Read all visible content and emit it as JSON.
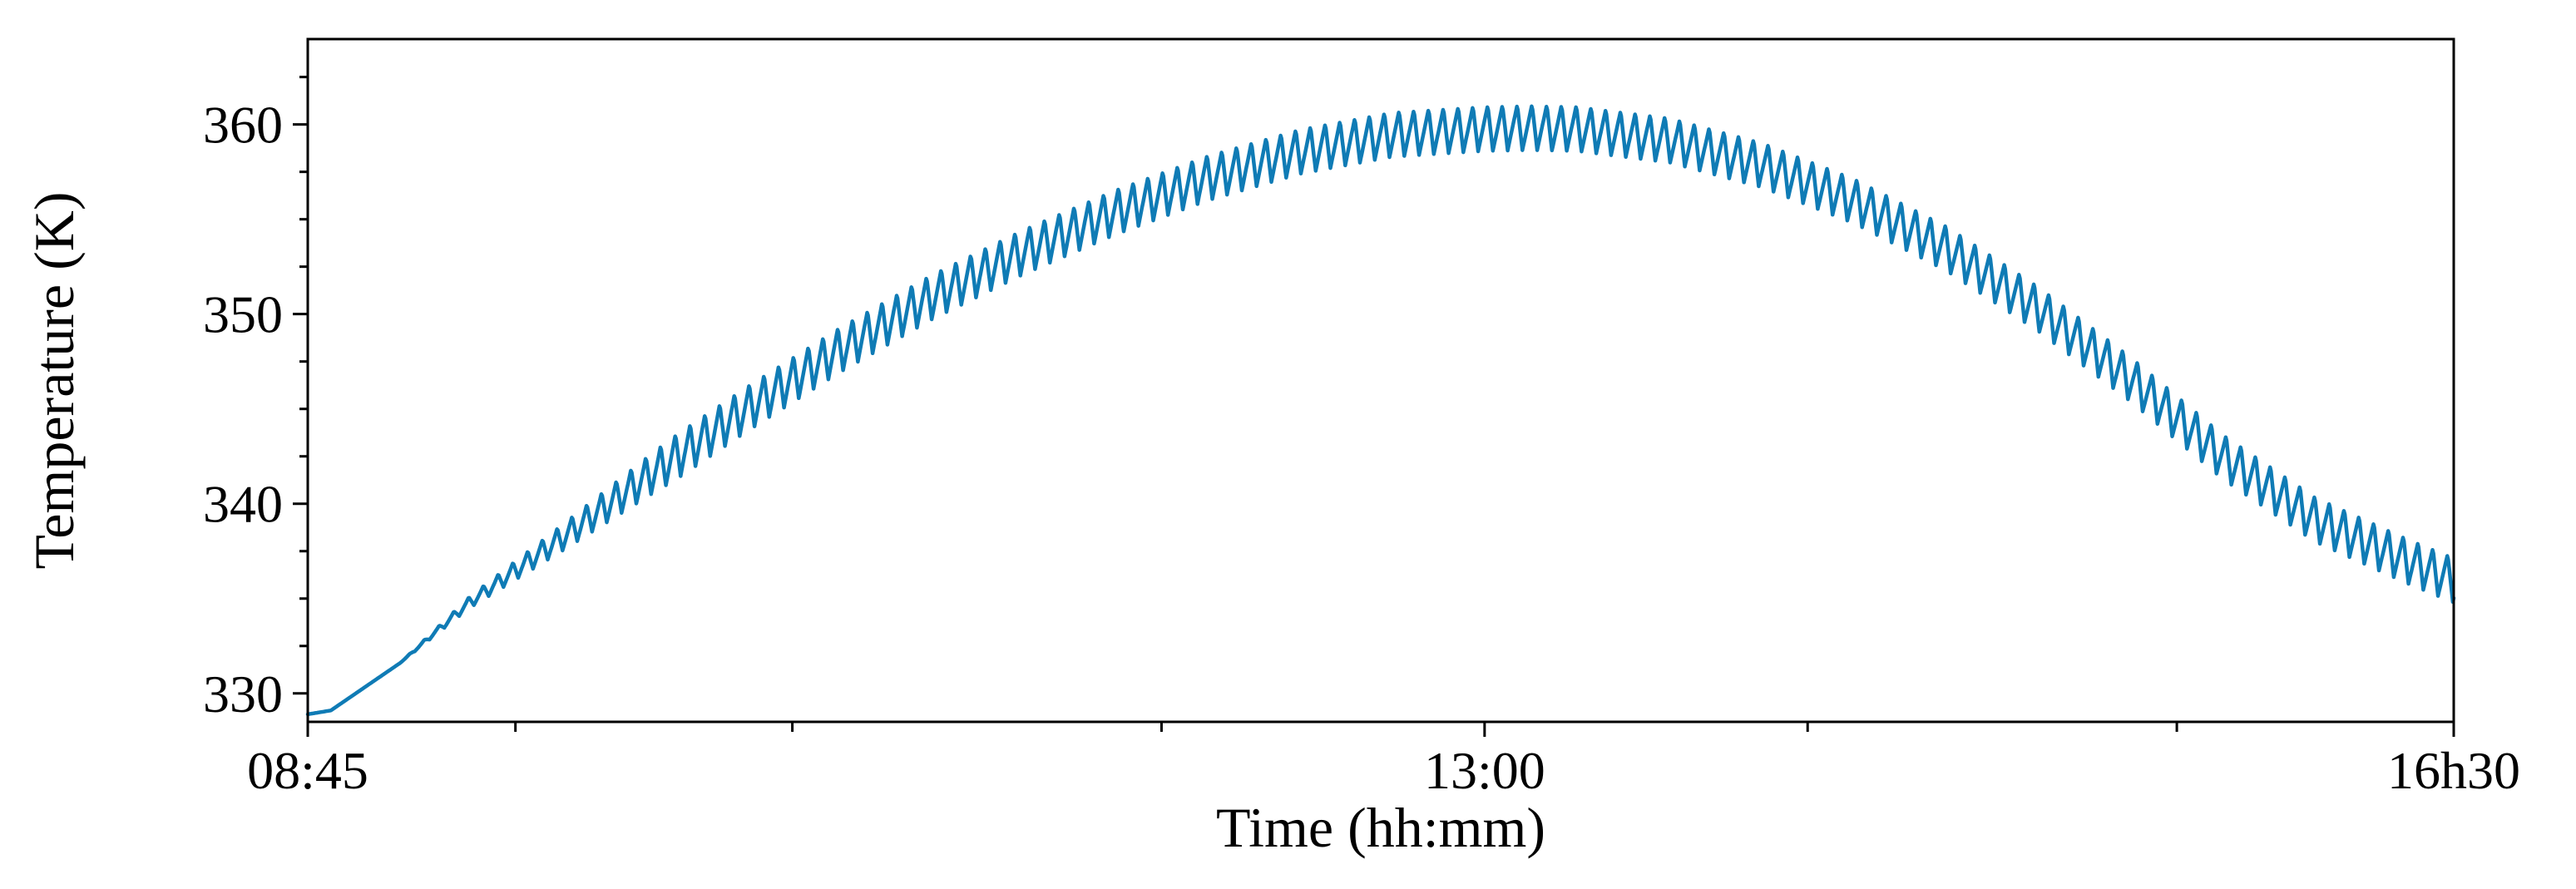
{
  "chart_data": {
    "type": "line",
    "title": "",
    "xlabel": "Time (hh:mm)",
    "ylabel": "Temperature (K)",
    "x_unit": "minutes since 00:00",
    "xlim": [
      525,
      990
    ],
    "ylim": [
      328.5,
      364.5
    ],
    "grid": false,
    "legend": null,
    "x_ticks": [
      {
        "value": 525,
        "label": "08:45"
      },
      {
        "value": 780,
        "label": "13:00"
      },
      {
        "value": 990,
        "label": "16h30"
      }
    ],
    "x_minor_ticks": [
      570,
      630,
      710,
      850,
      930
    ],
    "y_ticks": [
      {
        "value": 330,
        "label": "330"
      },
      {
        "value": 340,
        "label": "340"
      },
      {
        "value": 350,
        "label": "350"
      },
      {
        "value": 360,
        "label": "360"
      }
    ],
    "y_minor_ticks": [
      332.5,
      335,
      337.5,
      342.5,
      345,
      347.5,
      352.5,
      355,
      357.5,
      362.5
    ],
    "series": [
      {
        "name": "Temperature",
        "color": "#0f7bb5",
        "oscillation_amplitude_K": 1.2,
        "oscillation_period_min": 3.2,
        "trend": {
          "x": [
            525,
            530,
            545,
            560,
            580,
            600,
            620,
            640,
            660,
            680,
            700,
            720,
            740,
            760,
            780,
            790,
            800,
            820,
            840,
            860,
            880,
            900,
            920,
            940,
            960,
            980,
            990
          ],
          "y": [
            328.9,
            329.1,
            331.6,
            334.8,
            338.2,
            341.7,
            345.0,
            348.1,
            350.9,
            353.3,
            355.4,
            357.2,
            358.6,
            359.5,
            359.8,
            359.85,
            359.8,
            359.2,
            357.9,
            356.0,
            353.5,
            350.3,
            346.6,
            342.5,
            339.2,
            337.0,
            336.0
          ]
        }
      }
    ]
  }
}
